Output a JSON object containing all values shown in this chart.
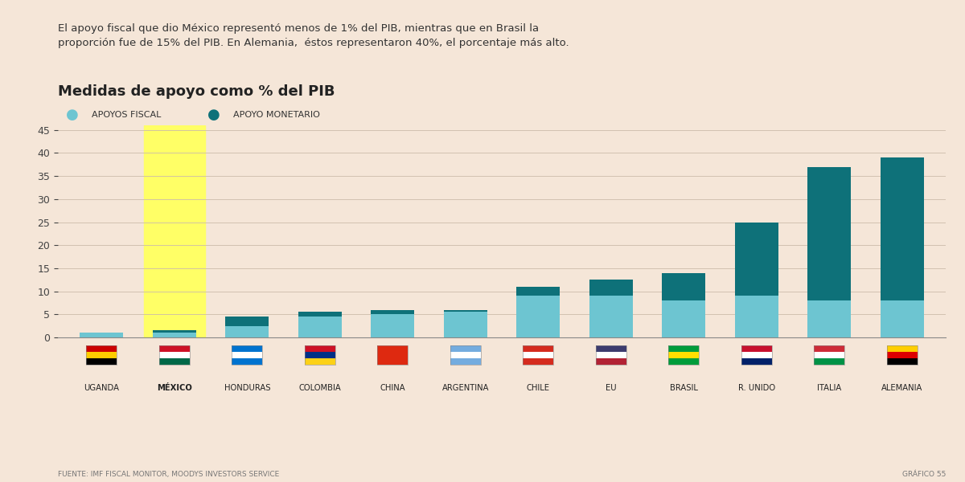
{
  "countries": [
    "UGANDA",
    "MÉXICO",
    "HONDURAS",
    "COLOMBIA",
    "CHINA",
    "ARGENTINA",
    "CHILE",
    "EU",
    "BRASIL",
    "R. UNIDO",
    "ITALIA",
    "ALEMANIA"
  ],
  "fiscal": [
    1.0,
    1.0,
    2.5,
    4.5,
    5.0,
    5.5,
    9.0,
    9.0,
    8.0,
    9.0,
    8.0,
    8.0
  ],
  "monetary": [
    0.0,
    0.5,
    2.0,
    1.0,
    1.0,
    0.5,
    2.0,
    3.5,
    6.0,
    16.0,
    29.0,
    31.0
  ],
  "highlight_index": 1,
  "highlight_color": "#FFFF66",
  "fiscal_color": "#6DC5D1",
  "monetary_color": "#0E7179",
  "background_color": "#F5E6D8",
  "title": "Medidas de apoyo como % del PIB",
  "subtitle_line1": "El apoyo fiscal que dio México representó menos de 1% del PIB, mientras que en Brasil la",
  "subtitle_line2": "proporción fue de 15% del PIB. En Alemania,  éstos representaron 40%, el porcentaje más alto.",
  "legend_fiscal": "APOYOS FISCAL",
  "legend_monetary": "APOYO MONETARIO",
  "yticks": [
    0,
    5,
    10,
    15,
    20,
    25,
    30,
    35,
    40,
    45
  ],
  "ylim": [
    0,
    46
  ],
  "source": "FUENTE: IMF FISCAL MONITOR, MOODYS INVESTORS SERVICE",
  "grafico": "GRÁFICO 55",
  "flag_colors": [
    [
      "#000000",
      "#FFCC00",
      "#CC0000"
    ],
    [
      "#006847",
      "#FFFFFF",
      "#CE1126"
    ],
    [
      "#0073CF",
      "#FFFFFF",
      "#0073CF"
    ],
    [
      "#FCD116",
      "#003087",
      "#CE1126"
    ],
    [
      "#DE2910",
      "#DE2910",
      "#DE2910"
    ],
    [
      "#74ACDF",
      "#FFFFFF",
      "#74ACDF"
    ],
    [
      "#D52B1E",
      "#FFFFFF",
      "#D52B1E"
    ],
    [
      "#B22234",
      "#FFFFFF",
      "#3C3B6E"
    ],
    [
      "#009C3B",
      "#FFDF00",
      "#009C3B"
    ],
    [
      "#012169",
      "#FFFFFF",
      "#C8102E"
    ],
    [
      "#009246",
      "#FFFFFF",
      "#CE2B37"
    ],
    [
      "#000000",
      "#DD0000",
      "#FFCE00"
    ]
  ]
}
